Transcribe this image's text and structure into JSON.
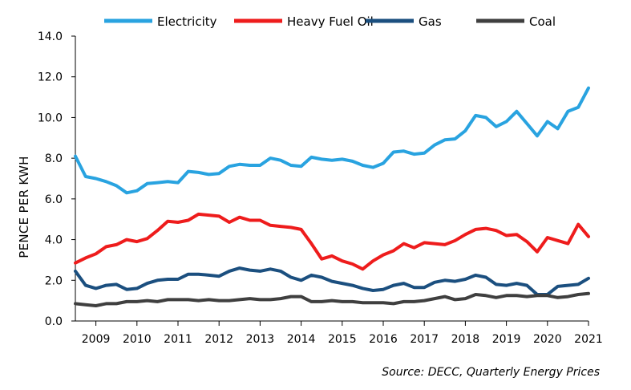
{
  "chart_data": {
    "type": "line",
    "title": "",
    "xlabel": "",
    "ylabel": "PENCE PER KWH",
    "ylim": [
      0,
      14
    ],
    "yticks": [
      "0.0",
      "2.0",
      "4.0",
      "6.0",
      "8.0",
      "10.0",
      "12.0",
      "14.0"
    ],
    "year_labels": [
      "2009",
      "2010",
      "2011",
      "2012",
      "2013",
      "2014",
      "2015",
      "2016",
      "2017",
      "2018",
      "2019",
      "2020",
      "2021"
    ],
    "x_start": 2008.5,
    "x_step": 0.25,
    "legend_position": "top",
    "source": "Source: DECC, Quarterly Energy Prices",
    "series": [
      {
        "name": "Electricity",
        "color": "#29a3e0",
        "values": [
          8.1,
          7.1,
          7.0,
          6.85,
          6.65,
          6.3,
          6.4,
          6.75,
          6.8,
          6.85,
          6.8,
          7.35,
          7.3,
          7.2,
          7.25,
          7.6,
          7.7,
          7.65,
          7.65,
          8.0,
          7.9,
          7.65,
          7.6,
          8.05,
          7.95,
          7.9,
          7.95,
          7.85,
          7.65,
          7.55,
          7.75,
          8.3,
          8.35,
          8.2,
          8.25,
          8.65,
          8.9,
          8.95,
          9.35,
          10.1,
          10.0,
          9.55,
          9.8,
          10.3,
          9.7,
          9.1,
          9.8,
          9.45,
          10.3,
          10.5,
          11.45
        ]
      },
      {
        "name": "Heavy Fuel Oil",
        "color": "#ee1c1c",
        "values": [
          2.85,
          3.1,
          3.3,
          3.65,
          3.75,
          4.0,
          3.9,
          4.05,
          4.45,
          4.9,
          4.85,
          4.95,
          5.25,
          5.2,
          5.15,
          4.85,
          5.1,
          4.95,
          4.95,
          4.7,
          4.65,
          4.6,
          4.5,
          3.8,
          3.05,
          3.2,
          2.95,
          2.8,
          2.55,
          2.95,
          3.25,
          3.45,
          3.8,
          3.6,
          3.85,
          3.8,
          3.75,
          3.95,
          4.25,
          4.5,
          4.55,
          4.45,
          4.2,
          4.25,
          3.9,
          3.4,
          4.1,
          3.95,
          3.8,
          4.75,
          4.15
        ]
      },
      {
        "name": "Gas",
        "color": "#1b4f7f",
        "values": [
          2.45,
          1.75,
          1.6,
          1.75,
          1.8,
          1.55,
          1.6,
          1.85,
          2.0,
          2.05,
          2.05,
          2.3,
          2.3,
          2.25,
          2.2,
          2.45,
          2.6,
          2.5,
          2.45,
          2.55,
          2.45,
          2.15,
          2.0,
          2.25,
          2.15,
          1.95,
          1.85,
          1.75,
          1.6,
          1.5,
          1.55,
          1.75,
          1.85,
          1.65,
          1.65,
          1.9,
          2.0,
          1.95,
          2.05,
          2.25,
          2.15,
          1.8,
          1.75,
          1.85,
          1.75,
          1.3,
          1.3,
          1.7,
          1.75,
          1.8,
          2.1
        ]
      },
      {
        "name": "Coal",
        "color": "#3f3f3f",
        "values": [
          0.85,
          0.8,
          0.75,
          0.85,
          0.85,
          0.95,
          0.95,
          1.0,
          0.95,
          1.05,
          1.05,
          1.05,
          1.0,
          1.05,
          1.0,
          1.0,
          1.05,
          1.1,
          1.05,
          1.05,
          1.1,
          1.2,
          1.2,
          0.95,
          0.95,
          1.0,
          0.95,
          0.95,
          0.9,
          0.9,
          0.9,
          0.85,
          0.95,
          0.95,
          1.0,
          1.1,
          1.2,
          1.05,
          1.1,
          1.3,
          1.25,
          1.15,
          1.25,
          1.25,
          1.2,
          1.25,
          1.25,
          1.15,
          1.2,
          1.3,
          1.35
        ]
      }
    ]
  }
}
